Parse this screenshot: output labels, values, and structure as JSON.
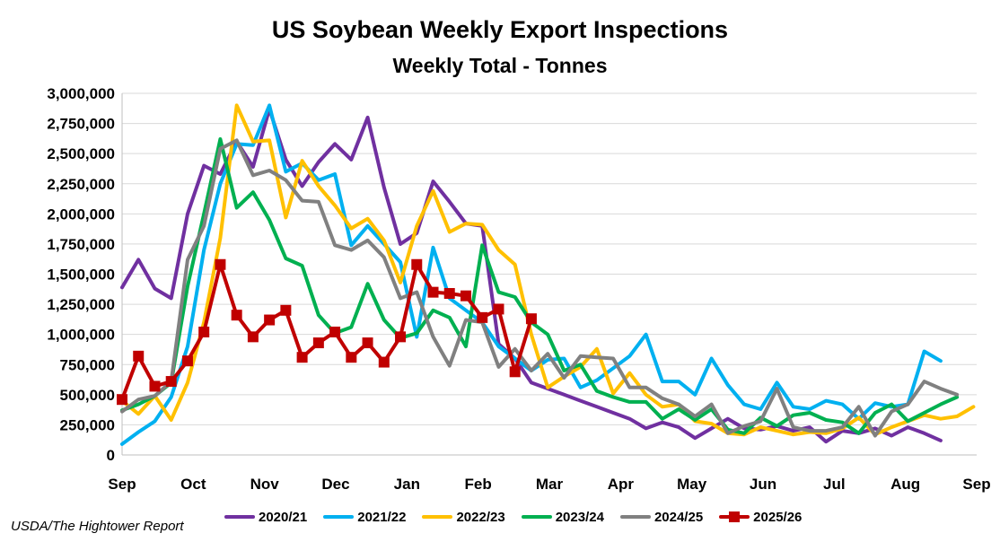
{
  "chart_data": {
    "type": "line",
    "title": "US Soybean Weekly Export Inspections",
    "subtitle": "Weekly Total - Tonnes",
    "source": "USDA/The Hightower Report",
    "xlabel": "",
    "ylabel": "",
    "ylim": [
      0,
      3000000
    ],
    "y_ticks": [
      0,
      250000,
      500000,
      750000,
      1000000,
      1250000,
      1500000,
      1750000,
      2000000,
      2250000,
      2500000,
      2750000,
      3000000
    ],
    "y_tick_labels": [
      "0",
      "250,000",
      "500,000",
      "750,000",
      "1,000,000",
      "1,250,000",
      "1,500,000",
      "1,750,000",
      "2,000,000",
      "2,250,000",
      "2,500,000",
      "2,750,000",
      "3,000,000"
    ],
    "x_tick_labels": [
      "Sep",
      "Oct",
      "Nov",
      "Dec",
      "Jan",
      "Feb",
      "Mar",
      "Apr",
      "May",
      "Jun",
      "Jul",
      "Aug",
      "Sep"
    ],
    "x_unit": "weeks from the start of September",
    "xlim": [
      0,
      52.2
    ],
    "grid": true,
    "legend_position": "bottom",
    "series": [
      {
        "name": "2020/21",
        "color": "#7030A0",
        "marker": "none",
        "x": [
          0,
          1,
          2,
          3,
          4,
          5,
          6,
          7,
          8,
          9,
          10,
          11,
          12,
          13,
          14,
          15,
          16,
          17,
          18,
          19,
          20,
          21,
          22,
          23,
          24,
          25,
          26,
          27,
          28,
          29,
          30,
          31,
          32,
          33,
          34,
          35,
          36,
          37,
          38,
          39,
          40,
          41,
          42,
          43,
          44,
          45,
          46,
          47,
          48,
          49,
          50
        ],
        "y": [
          1390000,
          1620000,
          1380000,
          1300000,
          2000000,
          2400000,
          2330000,
          2600000,
          2390000,
          2870000,
          2450000,
          2230000,
          2430000,
          2580000,
          2450000,
          2800000,
          2220000,
          1750000,
          1840000,
          2270000,
          2100000,
          1920000,
          1900000,
          920000,
          800000,
          600000,
          550000,
          500000,
          450000,
          400000,
          350000,
          300000,
          220000,
          270000,
          230000,
          140000,
          220000,
          300000,
          220000,
          210000,
          240000,
          200000,
          230000,
          110000,
          200000,
          180000,
          220000,
          160000,
          230000,
          180000,
          120000
        ]
      },
      {
        "name": "2021/22",
        "color": "#00B0F0",
        "marker": "none",
        "x": [
          0,
          1,
          2,
          3,
          4,
          5,
          6,
          7,
          8,
          9,
          10,
          11,
          12,
          13,
          14,
          15,
          16,
          17,
          18,
          19,
          20,
          21,
          22,
          23,
          24,
          25,
          26,
          27,
          28,
          29,
          30,
          31,
          32,
          33,
          34,
          35,
          36,
          37,
          38,
          39,
          40,
          41,
          42,
          43,
          44,
          45,
          46,
          47,
          48,
          49,
          50
        ],
        "y": [
          90000,
          190000,
          280000,
          480000,
          900000,
          1700000,
          2250000,
          2580000,
          2570000,
          2900000,
          2350000,
          2420000,
          2280000,
          2330000,
          1740000,
          1900000,
          1750000,
          1600000,
          980000,
          1720000,
          1300000,
          1200000,
          1100000,
          900000,
          800000,
          700000,
          790000,
          800000,
          560000,
          620000,
          720000,
          820000,
          1000000,
          610000,
          610000,
          500000,
          800000,
          580000,
          420000,
          380000,
          600000,
          400000,
          380000,
          450000,
          420000,
          300000,
          430000,
          400000,
          420000,
          860000,
          780000
        ]
      },
      {
        "name": "2022/23",
        "color": "#FFC000",
        "marker": "none",
        "x": [
          0,
          1,
          2,
          3,
          4,
          5,
          6,
          7,
          8,
          9,
          10,
          11,
          12,
          13,
          14,
          15,
          16,
          17,
          18,
          19,
          20,
          21,
          22,
          23,
          24,
          25,
          26,
          27,
          28,
          29,
          30,
          31,
          32,
          33,
          34,
          35,
          36,
          37,
          38,
          39,
          40,
          41,
          42,
          43,
          44,
          45,
          46,
          47,
          48,
          49,
          50,
          51,
          52
        ],
        "y": [
          450000,
          340000,
          490000,
          290000,
          600000,
          1100000,
          1800000,
          2900000,
          2600000,
          2610000,
          1970000,
          2440000,
          2230000,
          2070000,
          1880000,
          1960000,
          1780000,
          1430000,
          1900000,
          2190000,
          1850000,
          1920000,
          1910000,
          1700000,
          1580000,
          1000000,
          560000,
          650000,
          730000,
          880000,
          510000,
          680000,
          500000,
          400000,
          420000,
          280000,
          260000,
          180000,
          170000,
          230000,
          200000,
          170000,
          190000,
          180000,
          220000,
          310000,
          170000,
          230000,
          280000,
          330000,
          300000,
          320000,
          400000
        ]
      },
      {
        "name": "2023/24",
        "color": "#00B050",
        "marker": "none",
        "x": [
          0,
          1,
          2,
          3,
          4,
          5,
          6,
          7,
          8,
          9,
          10,
          11,
          12,
          13,
          14,
          15,
          16,
          17,
          18,
          19,
          20,
          21,
          22,
          23,
          24,
          25,
          26,
          27,
          28,
          29,
          30,
          31,
          32,
          33,
          34,
          35,
          36,
          37,
          38,
          39,
          40,
          41,
          42,
          43,
          44,
          45,
          46,
          47,
          48,
          49,
          50,
          51
        ],
        "y": [
          370000,
          420000,
          490000,
          600000,
          1400000,
          2000000,
          2620000,
          2050000,
          2180000,
          1950000,
          1630000,
          1570000,
          1160000,
          1010000,
          1060000,
          1420000,
          1120000,
          970000,
          1010000,
          1200000,
          1140000,
          900000,
          1740000,
          1350000,
          1310000,
          1100000,
          1000000,
          700000,
          750000,
          530000,
          480000,
          440000,
          440000,
          300000,
          380000,
          290000,
          380000,
          210000,
          180000,
          310000,
          240000,
          330000,
          350000,
          290000,
          270000,
          180000,
          350000,
          420000,
          280000,
          350000,
          420000,
          480000
        ]
      },
      {
        "name": "2024/25",
        "color": "#808080",
        "marker": "none",
        "x": [
          0,
          1,
          2,
          3,
          4,
          5,
          6,
          7,
          8,
          9,
          10,
          11,
          12,
          13,
          14,
          15,
          16,
          17,
          18,
          19,
          20,
          21,
          22,
          23,
          24,
          25,
          26,
          27,
          28,
          29,
          30,
          31,
          32,
          33,
          34,
          35,
          36,
          37,
          38,
          39,
          40,
          41,
          42,
          43,
          44,
          45,
          46,
          47,
          48,
          49,
          50,
          51
        ],
        "y": [
          360000,
          460000,
          490000,
          610000,
          1620000,
          1900000,
          2540000,
          2610000,
          2320000,
          2360000,
          2280000,
          2110000,
          2100000,
          1740000,
          1700000,
          1780000,
          1640000,
          1300000,
          1350000,
          980000,
          740000,
          1120000,
          1100000,
          730000,
          880000,
          700000,
          840000,
          640000,
          820000,
          810000,
          800000,
          560000,
          560000,
          470000,
          420000,
          320000,
          420000,
          180000,
          240000,
          280000,
          550000,
          230000,
          200000,
          200000,
          230000,
          400000,
          160000,
          360000,
          420000,
          610000,
          550000,
          500000
        ]
      },
      {
        "name": "2025/26",
        "color": "#C00000",
        "marker": "square",
        "x": [
          0,
          1,
          2,
          3,
          4,
          5,
          6,
          7,
          8,
          9,
          10,
          11,
          12,
          13,
          14,
          15,
          16,
          17,
          18,
          19,
          20,
          21,
          22,
          23,
          24,
          25
        ],
        "y": [
          460000,
          820000,
          570000,
          610000,
          780000,
          1020000,
          1580000,
          1160000,
          980000,
          1120000,
          1200000,
          810000,
          930000,
          1020000,
          810000,
          930000,
          770000,
          980000,
          1580000,
          1350000,
          1340000,
          1320000,
          1140000,
          1210000,
          690000,
          1130000
        ]
      }
    ]
  }
}
